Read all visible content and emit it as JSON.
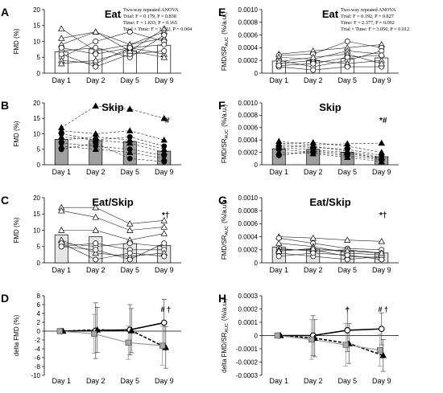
{
  "chart_data": [
    {
      "id": "A",
      "type": "bar",
      "panel_letter": "A",
      "title": "Eat",
      "ylabel": "FMD  (%)",
      "ylim": [
        0,
        20
      ],
      "yticks": [
        0,
        5,
        10,
        15,
        20
      ],
      "categories": [
        "Day 1",
        "Day 2",
        "Day 5",
        "Day 9"
      ],
      "bar_color": "#ffffff",
      "values": [
        6.7,
        7.6,
        7.1,
        8.8
      ],
      "individuals": [
        {
          "marker": "open-triangle",
          "values": [
            14,
            7,
            9,
            13
          ]
        },
        {
          "marker": "open-triangle",
          "values": [
            11,
            13,
            7,
            14
          ]
        },
        {
          "marker": "open-triangle",
          "values": [
            9,
            13,
            9,
            11
          ]
        },
        {
          "marker": "open-circle",
          "values": [
            5,
            10,
            13,
            10
          ]
        },
        {
          "marker": "open-circle",
          "values": [
            7,
            8,
            5,
            12
          ]
        },
        {
          "marker": "open-triangle",
          "values": [
            4,
            3,
            8,
            6
          ]
        },
        {
          "marker": "open-circle",
          "values": [
            6,
            2,
            6,
            7
          ]
        },
        {
          "marker": "open-triangle",
          "values": [
            3,
            4,
            7,
            5
          ]
        },
        {
          "marker": "open-circle",
          "values": [
            8,
            6,
            8,
            9
          ]
        }
      ],
      "stats": {
        "title": "Two-way repeated ANOVA",
        "lines": [
          "Trial: F = 0.179, P = 0.838",
          "Time: F = 1.833, P = 0.165",
          "Trial × Time: F = 3.702, P = 0.004"
        ]
      }
    },
    {
      "id": "B",
      "type": "bar",
      "panel_letter": "B",
      "title": "Skip",
      "ylabel": "FMD  (%)",
      "ylim": [
        0,
        20
      ],
      "yticks": [
        0,
        5,
        10,
        15,
        20
      ],
      "categories": [
        "Day 1",
        "Day 2",
        "Day 5",
        "Day 9"
      ],
      "bar_color": "#a0a0a0",
      "values": [
        8.2,
        7.8,
        7.5,
        4.4
      ],
      "line_style": "dashed",
      "individuals": [
        {
          "marker": "filled-triangle",
          "values": [
            12,
            19,
            18,
            15
          ]
        },
        {
          "marker": "filled-triangle",
          "values": [
            11,
            10,
            11,
            8
          ]
        },
        {
          "marker": "filled-circle",
          "values": [
            10,
            8,
            9,
            6
          ]
        },
        {
          "marker": "filled-triangle",
          "values": [
            9,
            8,
            7,
            4
          ]
        },
        {
          "marker": "filled-circle",
          "values": [
            7,
            6,
            5,
            3
          ]
        },
        {
          "marker": "filled-triangle",
          "values": [
            6,
            5,
            4,
            2
          ]
        },
        {
          "marker": "filled-circle",
          "values": [
            5,
            7,
            2,
            1
          ]
        },
        {
          "marker": "filled-triangle",
          "values": [
            8,
            9,
            8,
            5
          ]
        }
      ],
      "annotation": "*#"
    },
    {
      "id": "C",
      "type": "bar",
      "panel_letter": "C",
      "title": "Eat/Skip",
      "ylabel": "FMD  (%)",
      "ylim": [
        0,
        20
      ],
      "yticks": [
        0,
        5,
        10,
        15,
        20
      ],
      "categories": [
        "Day 1",
        "Day 2",
        "Day 5",
        "Day 9"
      ],
      "bar_color": "#e6e6e6",
      "values": [
        8.6,
        8.0,
        5.9,
        5.3
      ],
      "individuals": [
        {
          "marker": "open-triangle",
          "values": [
            17,
            17,
            12,
            13
          ]
        },
        {
          "marker": "open-triangle",
          "values": [
            16,
            14,
            10,
            11
          ]
        },
        {
          "marker": "open-triangle",
          "values": [
            10,
            10,
            7,
            9
          ]
        },
        {
          "marker": "open-circle",
          "values": [
            6,
            5,
            6,
            5
          ]
        },
        {
          "marker": "open-circle",
          "values": [
            5,
            6,
            4,
            4
          ]
        },
        {
          "marker": "open-triangle",
          "values": [
            7,
            3,
            2,
            3
          ]
        },
        {
          "marker": "open-circle",
          "values": [
            6,
            1,
            3,
            2
          ]
        },
        {
          "marker": "open-circle",
          "values": [
            5,
            4,
            1,
            6
          ]
        }
      ],
      "annotation": "*†"
    },
    {
      "id": "D",
      "type": "line",
      "panel_letter": "D",
      "ylabel": "delta FMD  (%)",
      "ylim": [
        -10,
        8
      ],
      "yticks": [
        -10,
        -8,
        -6,
        -4,
        -2,
        0,
        2,
        4,
        6,
        8
      ],
      "categories": [
        "Day 1",
        "Day 2",
        "Day 5",
        "Day 9"
      ],
      "series": [
        {
          "style": "eat",
          "values": [
            0,
            0.1,
            0.3,
            1.9
          ],
          "errors": [
            0,
            6.3,
            5.7,
            5.3
          ]
        },
        {
          "style": "skip",
          "values": [
            0,
            0.3,
            0.1,
            -3.7
          ],
          "errors": [
            0,
            5.1,
            5.0,
            4.7
          ]
        },
        {
          "style": "eatskip",
          "values": [
            0,
            -0.6,
            -2.6,
            -3.3
          ],
          "errors": [
            0,
            4.4,
            3.8,
            4.4
          ]
        }
      ],
      "annotation": "# †"
    },
    {
      "id": "E",
      "type": "bar",
      "panel_letter": "E",
      "title": "Eat",
      "ylabel": "FMD/SR",
      "ylabel_sub": "AUC",
      "ylabel_unit": "(%/a.u.)",
      "ylim": [
        0,
        0.001
      ],
      "yticks": [
        "0",
        "0.0002",
        "0.0004",
        "0.0006",
        "0.0008",
        "0.0010"
      ],
      "categories": [
        "Day 1",
        "Day 2",
        "Day 5",
        "Day 9"
      ],
      "bar_color": "#ffffff",
      "values": [
        0.00019,
        0.0002,
        0.00023,
        0.00024
      ],
      "individuals": [
        {
          "marker": "open-triangle",
          "values": [
            0.0003,
            0.00035,
            0.0004,
            0.00045
          ]
        },
        {
          "marker": "open-circle",
          "values": [
            0.00028,
            0.0003,
            0.0005,
            0.0004
          ]
        },
        {
          "marker": "open-triangle",
          "values": [
            0.00025,
            0.00022,
            0.00035,
            0.0003
          ]
        },
        {
          "marker": "open-circle",
          "values": [
            0.0002,
            0.0001,
            0.0002,
            0.00035
          ]
        },
        {
          "marker": "open-triangle",
          "values": [
            0.00015,
            0.0002,
            0.00015,
            0.0002
          ]
        },
        {
          "marker": "open-circle",
          "values": [
            0.0001,
            5e-05,
            0.0001,
            0.0001
          ]
        },
        {
          "marker": "open-triangle",
          "values": [
            0.00018,
            0.00025,
            0.0003,
            0.00015
          ]
        },
        {
          "marker": "open-circle",
          "values": [
            0.00012,
            0.00015,
            0.00025,
            0.00028
          ]
        }
      ],
      "stats": {
        "title": "Two-way repeated ANOVA",
        "lines": [
          "Trial: F = 0.192, P = 0.827",
          "Time: F = 2.377, P = 0.092",
          "Trial × Time: F = 3.050, P = 0.012"
        ]
      }
    },
    {
      "id": "F",
      "type": "bar",
      "panel_letter": "F",
      "title": "Skip",
      "ylabel": "FMD/SR",
      "ylabel_sub": "AUC",
      "ylabel_unit": "(%/a.u.)",
      "ylim": [
        0,
        0.001
      ],
      "yticks": [
        "0",
        "0.0002",
        "0.0004",
        "0.0006",
        "0.0008",
        "0.0010"
      ],
      "categories": [
        "Day 1",
        "Day 2",
        "Day 5",
        "Day 9"
      ],
      "bar_color": "#a0a0a0",
      "values": [
        0.00026,
        0.00025,
        0.0002,
        0.00013
      ],
      "line_style": "dashed",
      "individuals": [
        {
          "marker": "filled-triangle",
          "values": [
            0.00038,
            0.00032,
            0.00034,
            0.00035
          ]
        },
        {
          "marker": "filled-triangle",
          "values": [
            0.00034,
            0.00036,
            0.0003,
            0.0002
          ]
        },
        {
          "marker": "filled-circle",
          "values": [
            0.0003,
            0.00028,
            0.00025,
            0.00015
          ]
        },
        {
          "marker": "filled-triangle",
          "values": [
            0.00028,
            0.00024,
            0.0002,
            0.0001
          ]
        },
        {
          "marker": "filled-circle",
          "values": [
            0.00025,
            0.0002,
            0.00015,
            8e-05
          ]
        },
        {
          "marker": "filled-triangle",
          "values": [
            0.0002,
            0.00018,
            0.00012,
            5e-05
          ]
        },
        {
          "marker": "filled-circle",
          "values": [
            0.00015,
            0.00022,
            0.00018,
            0.0001
          ]
        },
        {
          "marker": "filled-triangle",
          "values": [
            0.00032,
            0.0003,
            0.00022,
            0.00012
          ]
        }
      ],
      "annotation": "*#"
    },
    {
      "id": "G",
      "type": "bar",
      "panel_letter": "G",
      "title": "Eat/Skip",
      "ylabel": "FMD/SR",
      "ylabel_sub": "AUC",
      "ylabel_unit": "(%/a.u.)",
      "ylim": [
        0,
        0.001
      ],
      "yticks": [
        "0",
        "0.0002",
        "0.0004",
        "0.0006",
        "0.0008",
        "0.0010"
      ],
      "categories": [
        "Day 1",
        "Day 2",
        "Day 5",
        "Day 9"
      ],
      "bar_color": "#e6e6e6",
      "values": [
        0.00024,
        0.00021,
        0.00018,
        0.00015
      ],
      "individuals": [
        {
          "marker": "open-triangle",
          "values": [
            0.0004,
            0.00038,
            0.00035,
            0.00033
          ]
        },
        {
          "marker": "open-circle",
          "values": [
            0.00038,
            0.0003,
            0.00022,
            0.0002
          ]
        },
        {
          "marker": "open-triangle",
          "values": [
            0.0003,
            0.00025,
            0.00015,
            0.00012
          ]
        },
        {
          "marker": "open-circle",
          "values": [
            0.00022,
            0.00018,
            0.0002,
            0.00015
          ]
        },
        {
          "marker": "open-triangle",
          "values": [
            0.0002,
            0.0002,
            0.0001,
            8e-05
          ]
        },
        {
          "marker": "open-circle",
          "values": [
            0.00015,
            0.0001,
            5e-05,
            0.0001
          ]
        },
        {
          "marker": "open-triangle",
          "values": [
            0.00018,
            0.00022,
            0.00018,
            0.00015
          ]
        },
        {
          "marker": "open-circle",
          "values": [
            0.0001,
            0.00015,
            0.00012,
            5e-05
          ]
        }
      ],
      "annotation": "*†"
    },
    {
      "id": "H",
      "type": "line",
      "panel_letter": "H",
      "ylabel": "delta FMD/SR",
      "ylabel_sub": "AUC",
      "ylabel_unit": "(%/a.u.)",
      "ylim": [
        -0.0003,
        0.0003
      ],
      "yticks": [
        "-0.0003",
        "-0.0002",
        "-0.0001",
        "0",
        "0.0001",
        "0.0002",
        "0.0003"
      ],
      "categories": [
        "Day 1",
        "Day 2",
        "Day 5",
        "Day 9"
      ],
      "series": [
        {
          "style": "eat",
          "values": [
            0,
            0.0,
            4e-05,
            5e-05
          ],
          "errors": [
            0,
            0.00015,
            0.00016,
            0.00012
          ]
        },
        {
          "style": "skip",
          "values": [
            0,
            -2e-05,
            -6e-05,
            -0.00015
          ],
          "errors": [
            0,
            0.00014,
            0.00015,
            0.00012
          ]
        },
        {
          "style": "eatskip",
          "values": [
            0,
            -3e-05,
            -7e-05,
            -0.00011
          ],
          "errors": [
            0,
            0.00015,
            0.00016,
            0.00012
          ]
        }
      ],
      "annotation_day5": "†",
      "annotation": "# †"
    }
  ]
}
